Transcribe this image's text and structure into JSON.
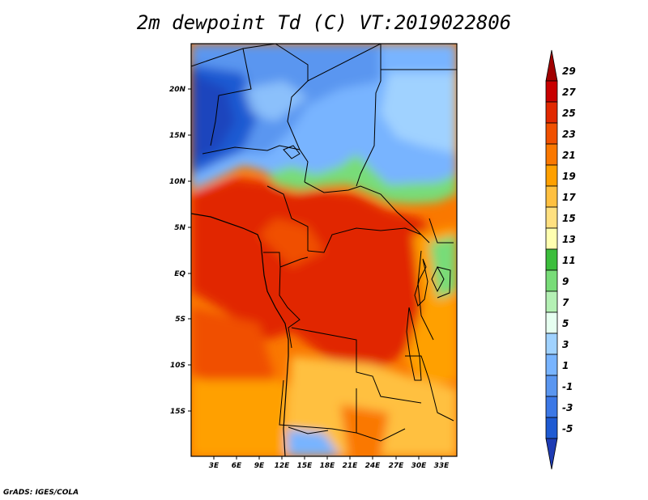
{
  "title": "2m dewpoint Td (C) VT:2019022806",
  "credit": "GrADS: IGES/COLA",
  "map": {
    "lon_range": [
      0,
      35
    ],
    "lat_range": [
      -20,
      25
    ],
    "lat_labels": [
      "20N",
      "15N",
      "10N",
      "5N",
      "EQ",
      "5S",
      "10S",
      "15S"
    ],
    "lon_labels": [
      "3E",
      "6E",
      "9E",
      "12E",
      "15E",
      "18E",
      "21E",
      "24E",
      "27E",
      "30E",
      "33E"
    ]
  },
  "colorbar": {
    "labels": [
      "29",
      "27",
      "25",
      "23",
      "21",
      "19",
      "17",
      "15",
      "13",
      "11",
      "9",
      "7",
      "5",
      "3",
      "1",
      "-1",
      "-3",
      "-5"
    ],
    "colors": [
      "#a00000",
      "#c80000",
      "#e12800",
      "#f05000",
      "#fa7800",
      "#ffa000",
      "#ffc040",
      "#ffe080",
      "#ffffb0",
      "#3cbe3c",
      "#78dc78",
      "#b4f0b4",
      "#e6fff0",
      "#a0d2ff",
      "#78b4ff",
      "#5a96f0",
      "#3c78e6",
      "#1e5ad2",
      "#1e3cb4"
    ]
  }
}
